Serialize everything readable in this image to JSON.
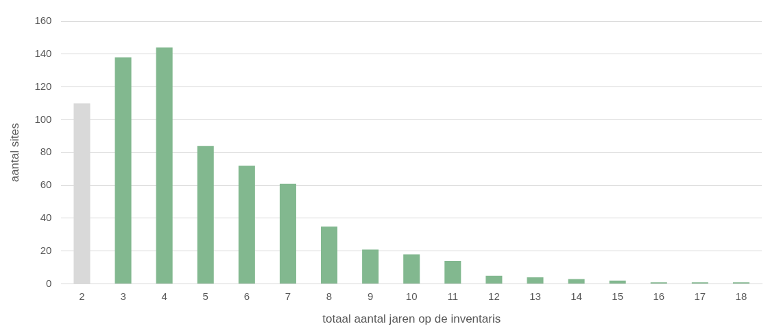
{
  "chart_data": {
    "type": "bar",
    "xlabel": "totaal aantal jaren op de inventaris",
    "ylabel": "aantal sites",
    "categories": [
      "2",
      "3",
      "4",
      "5",
      "6",
      "7",
      "8",
      "9",
      "10",
      "11",
      "12",
      "13",
      "14",
      "15",
      "16",
      "17",
      "18"
    ],
    "values": [
      110,
      138,
      144,
      84,
      72,
      61,
      35,
      21,
      18,
      14,
      5,
      4,
      3,
      2,
      1,
      1,
      1
    ],
    "colors": [
      "#d9d9d9",
      "#82b88f",
      "#82b88f",
      "#82b88f",
      "#82b88f",
      "#82b88f",
      "#82b88f",
      "#82b88f",
      "#82b88f",
      "#82b88f",
      "#82b88f",
      "#82b88f",
      "#82b88f",
      "#82b88f",
      "#82b88f",
      "#82b88f",
      "#82b88f"
    ],
    "ylim": [
      0,
      160
    ],
    "yticks": [
      0,
      20,
      40,
      60,
      80,
      100,
      120,
      140,
      160
    ],
    "grid": "y"
  }
}
